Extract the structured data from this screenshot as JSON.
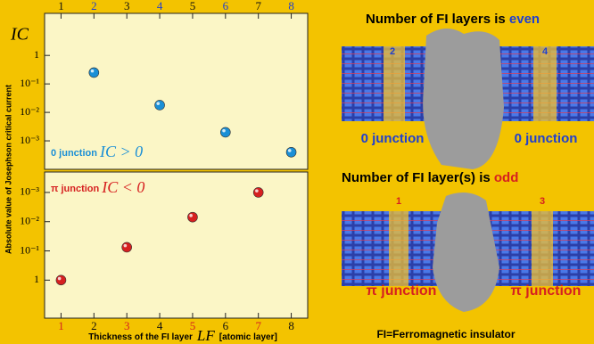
{
  "chart_data": [
    {
      "type": "scatter",
      "ylabel": "Absolute value of Josephson critical current",
      "ylabel_short": "IC",
      "annotation": "0 junction",
      "formula": "IC > 0",
      "x": [
        2,
        4,
        6,
        8
      ],
      "series": [
        {
          "color": "#1a8fd6",
          "values": [
            0.25,
            0.018,
            0.002,
            0.0004
          ]
        }
      ],
      "xlim": [
        0.5,
        8.5
      ],
      "xticks": [
        1,
        2,
        3,
        4,
        5,
        6,
        7,
        8
      ],
      "xtick_colors": [
        "#111111",
        "#1f3fd0",
        "#111111",
        "#1f3fd0",
        "#111111",
        "#1f3fd0",
        "#111111",
        "#1f3fd0"
      ],
      "ylim": [
        0.0001,
        30
      ],
      "log_y": true,
      "yticks": [
        {
          "value": 1,
          "label": "1"
        },
        {
          "value": 0.1,
          "label": "10⁻¹"
        },
        {
          "value": 0.01,
          "label": "10⁻²"
        },
        {
          "value": 0.001,
          "label": "10⁻³"
        }
      ]
    },
    {
      "type": "scatter",
      "xlabel": "Thickness of the FI layer",
      "xlabel_symbol": "LF",
      "xlabel_unit": "[atomic layer]",
      "annotation": "π junction",
      "formula": "IC < 0",
      "x": [
        1,
        3,
        5,
        7
      ],
      "series": [
        {
          "color": "#d62020",
          "values": [
            1,
            0.075,
            0.007,
            0.001
          ]
        }
      ],
      "xlim": [
        0.5,
        8.5
      ],
      "xticks": [
        1,
        2,
        3,
        4,
        5,
        6,
        7,
        8
      ],
      "xtick_colors": [
        "#d62020",
        "#111111",
        "#d62020",
        "#111111",
        "#d62020",
        "#111111",
        "#d62020",
        "#111111"
      ],
      "ylim": [
        20,
        0.0002
      ],
      "log_y": true,
      "yticks": [
        {
          "value": 0.001,
          "label": "10⁻³"
        },
        {
          "value": 0.01,
          "label": "10⁻²"
        },
        {
          "value": 0.1,
          "label": "10⁻¹"
        },
        {
          "value": 1,
          "label": "1"
        }
      ]
    }
  ],
  "diagram": {
    "even_title": "Number of FI layers is ",
    "even_word": "even",
    "odd_title": "Number of FI layer(s) is ",
    "odd_word": "odd",
    "even_layers": [
      "2",
      "4"
    ],
    "even_labels": [
      "0 junction",
      "0 junction"
    ],
    "odd_layers": [
      "1",
      "3"
    ],
    "odd_labels": [
      "π junction",
      "π junction"
    ],
    "footnote": "FI=Ferromagnetic insulator"
  }
}
